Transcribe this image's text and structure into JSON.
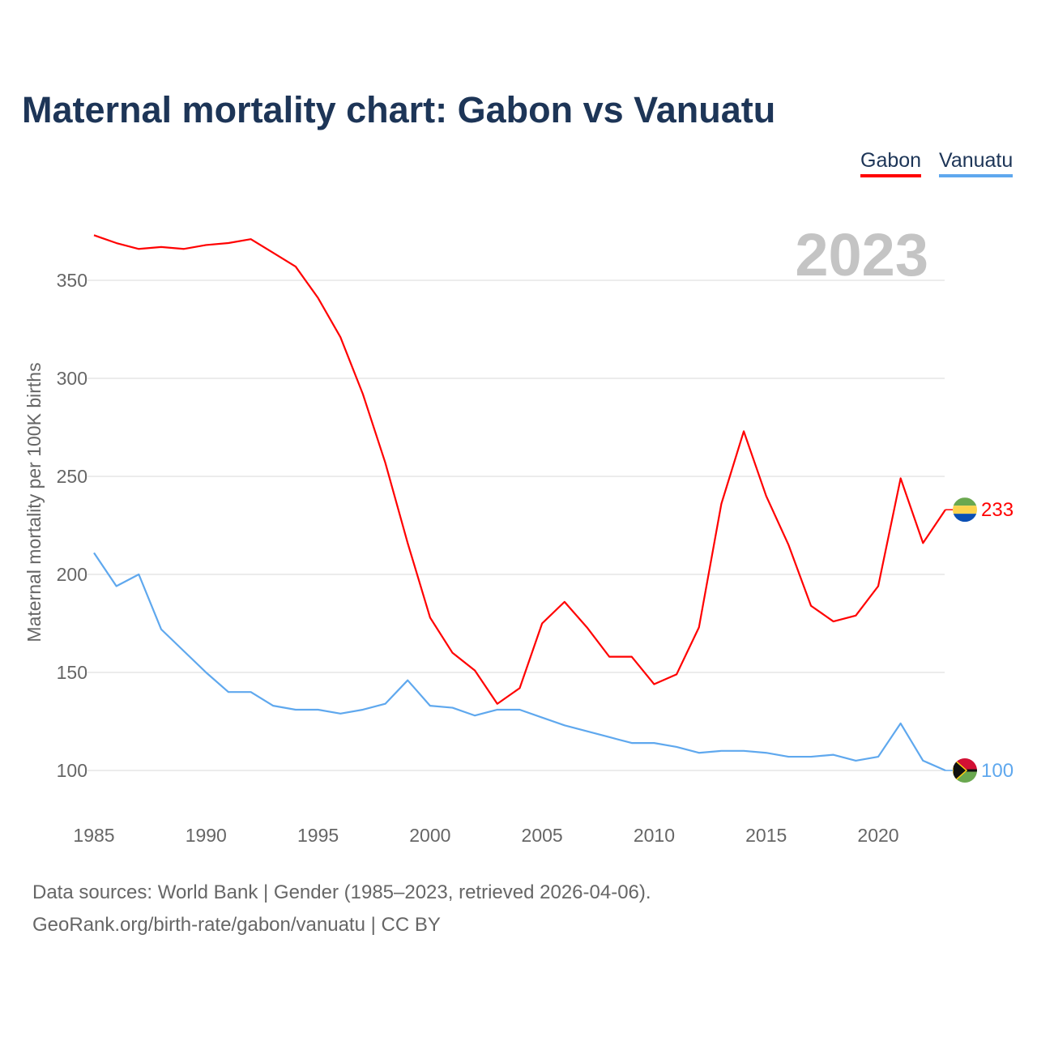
{
  "title": "Maternal mortality chart: Gabon vs Vanuatu",
  "legend": [
    "Gabon",
    "Vanuatu"
  ],
  "year_watermark": "2023",
  "colors": {
    "Gabon": "#ff0000",
    "Vanuatu": "#5fa8ee",
    "grid": "#e6e6e6",
    "axis_text": "#666666"
  },
  "sources": {
    "line1": "Data sources: World Bank | Gender (1985–2023, retrieved 2026-04-06).",
    "line2": "GeoRank.org/birth-rate/gabon/vanuatu | CC BY"
  },
  "chart_data": {
    "type": "line",
    "title": "Maternal mortality chart: Gabon vs Vanuatu",
    "xlabel": "",
    "ylabel": "Maternal mortality per 100K births",
    "xlim": [
      1985,
      2023
    ],
    "ylim": [
      100,
      350
    ],
    "xticks": [
      1985,
      1990,
      1995,
      2000,
      2005,
      2010,
      2015,
      2020
    ],
    "yticks": [
      100,
      150,
      200,
      250,
      300,
      350
    ],
    "grid": true,
    "legend_position": "top-right",
    "x": [
      1985,
      1986,
      1987,
      1988,
      1989,
      1990,
      1991,
      1992,
      1993,
      1994,
      1995,
      1996,
      1997,
      1998,
      1999,
      2000,
      2001,
      2002,
      2003,
      2004,
      2005,
      2006,
      2007,
      2008,
      2009,
      2010,
      2011,
      2012,
      2013,
      2014,
      2015,
      2016,
      2017,
      2018,
      2019,
      2020,
      2021,
      2022,
      2023
    ],
    "series": [
      {
        "name": "Gabon",
        "end_label": "233",
        "values": [
          373,
          369,
          366,
          367,
          366,
          368,
          369,
          371,
          364,
          357,
          341,
          321,
          292,
          257,
          216,
          178,
          160,
          151,
          134,
          142,
          175,
          186,
          173,
          158,
          158,
          144,
          149,
          173,
          236,
          273,
          240,
          215,
          184,
          176,
          179,
          194,
          249,
          216,
          233
        ]
      },
      {
        "name": "Vanuatu",
        "end_label": "100",
        "values": [
          211,
          194,
          200,
          172,
          161,
          150,
          140,
          140,
          133,
          131,
          131,
          129,
          131,
          134,
          146,
          133,
          132,
          128,
          131,
          131,
          127,
          123,
          120,
          117,
          114,
          114,
          112,
          109,
          110,
          110,
          109,
          107,
          107,
          108,
          105,
          107,
          124,
          105,
          100
        ]
      }
    ]
  }
}
